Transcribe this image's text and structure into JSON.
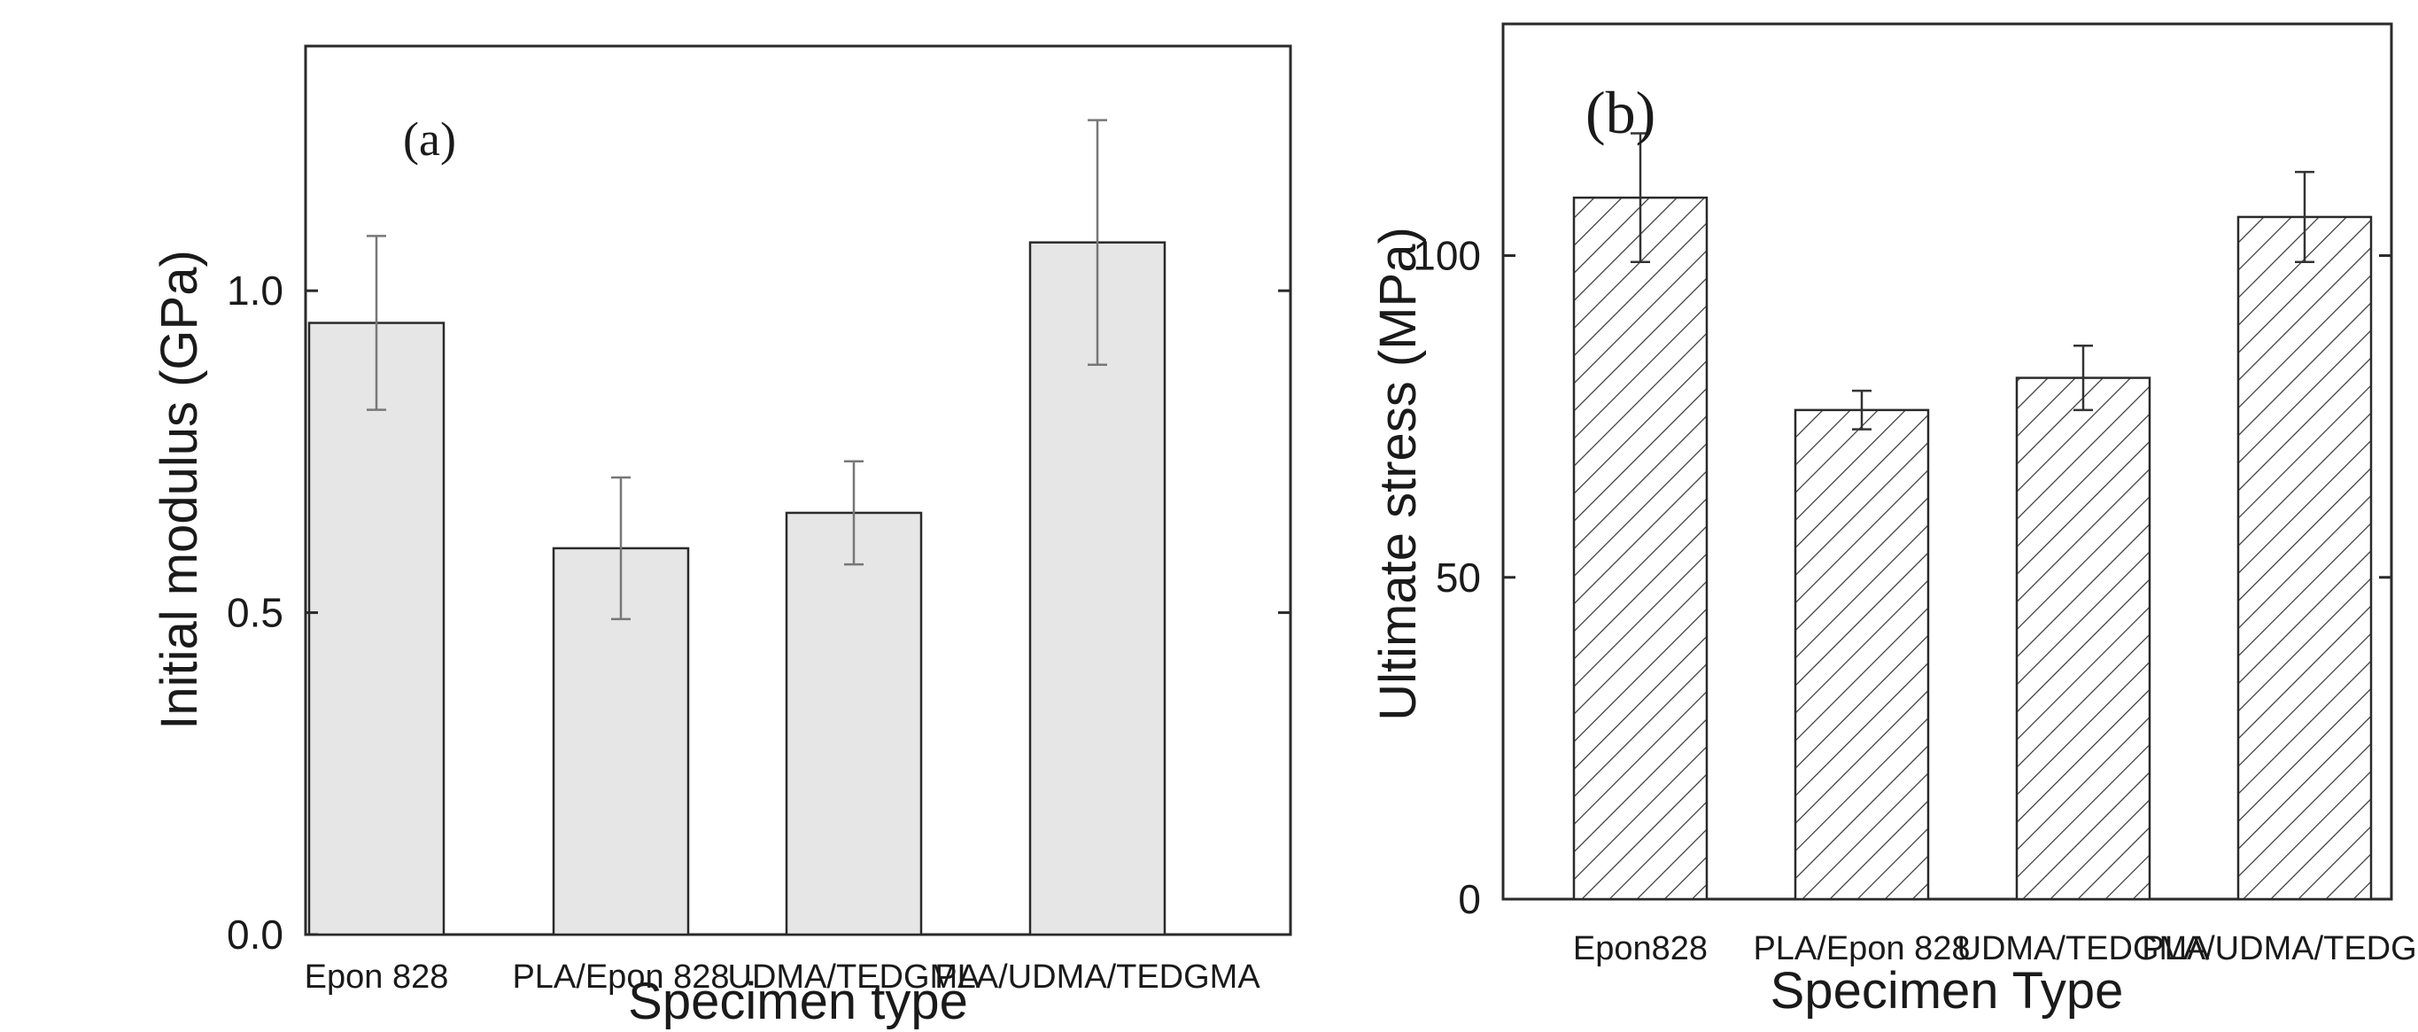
{
  "chart_data": [
    {
      "type": "bar",
      "panel_label": "(a)",
      "categories": [
        "Epon 828",
        "PLA/Epon 828",
        "UDMA/TEDGMA",
        "PLA/UDMA/TEDGMA"
      ],
      "values": [
        0.95,
        0.6,
        0.655,
        1.075
      ],
      "errors": [
        0.135,
        0.11,
        0.08,
        0.19
      ],
      "xlabel": "Specimen type",
      "ylabel": "Initial modulus (GPa)",
      "ylim": [
        0,
        1.38
      ],
      "yticks": [
        0.0,
        0.5,
        1.0
      ],
      "ytick_labels": [
        "0.0",
        "0.5",
        "1.0"
      ],
      "bar_fill": "#e6e6e6",
      "bar_pattern": "solid",
      "error_bar_color": "#777777",
      "grid": false
    },
    {
      "type": "bar",
      "panel_label": "(b)",
      "categories": [
        "Epon828",
        "PLA/Epon 828",
        "UDMA/TEDGMA",
        "PLA/UDMA/TEDGMA"
      ],
      "values": [
        109,
        76,
        81,
        106
      ],
      "errors": [
        10,
        3,
        5,
        7
      ],
      "xlabel": "Specimen Type",
      "ylabel": "Ultimate stress (MPa)",
      "ylim": [
        0,
        136
      ],
      "yticks": [
        0,
        50,
        100
      ],
      "ytick_labels": [
        "0",
        "50",
        "100"
      ],
      "bar_fill": "#ffffff",
      "bar_pattern": "diagonal-hatch",
      "error_bar_color": "#333333",
      "grid": false
    }
  ]
}
